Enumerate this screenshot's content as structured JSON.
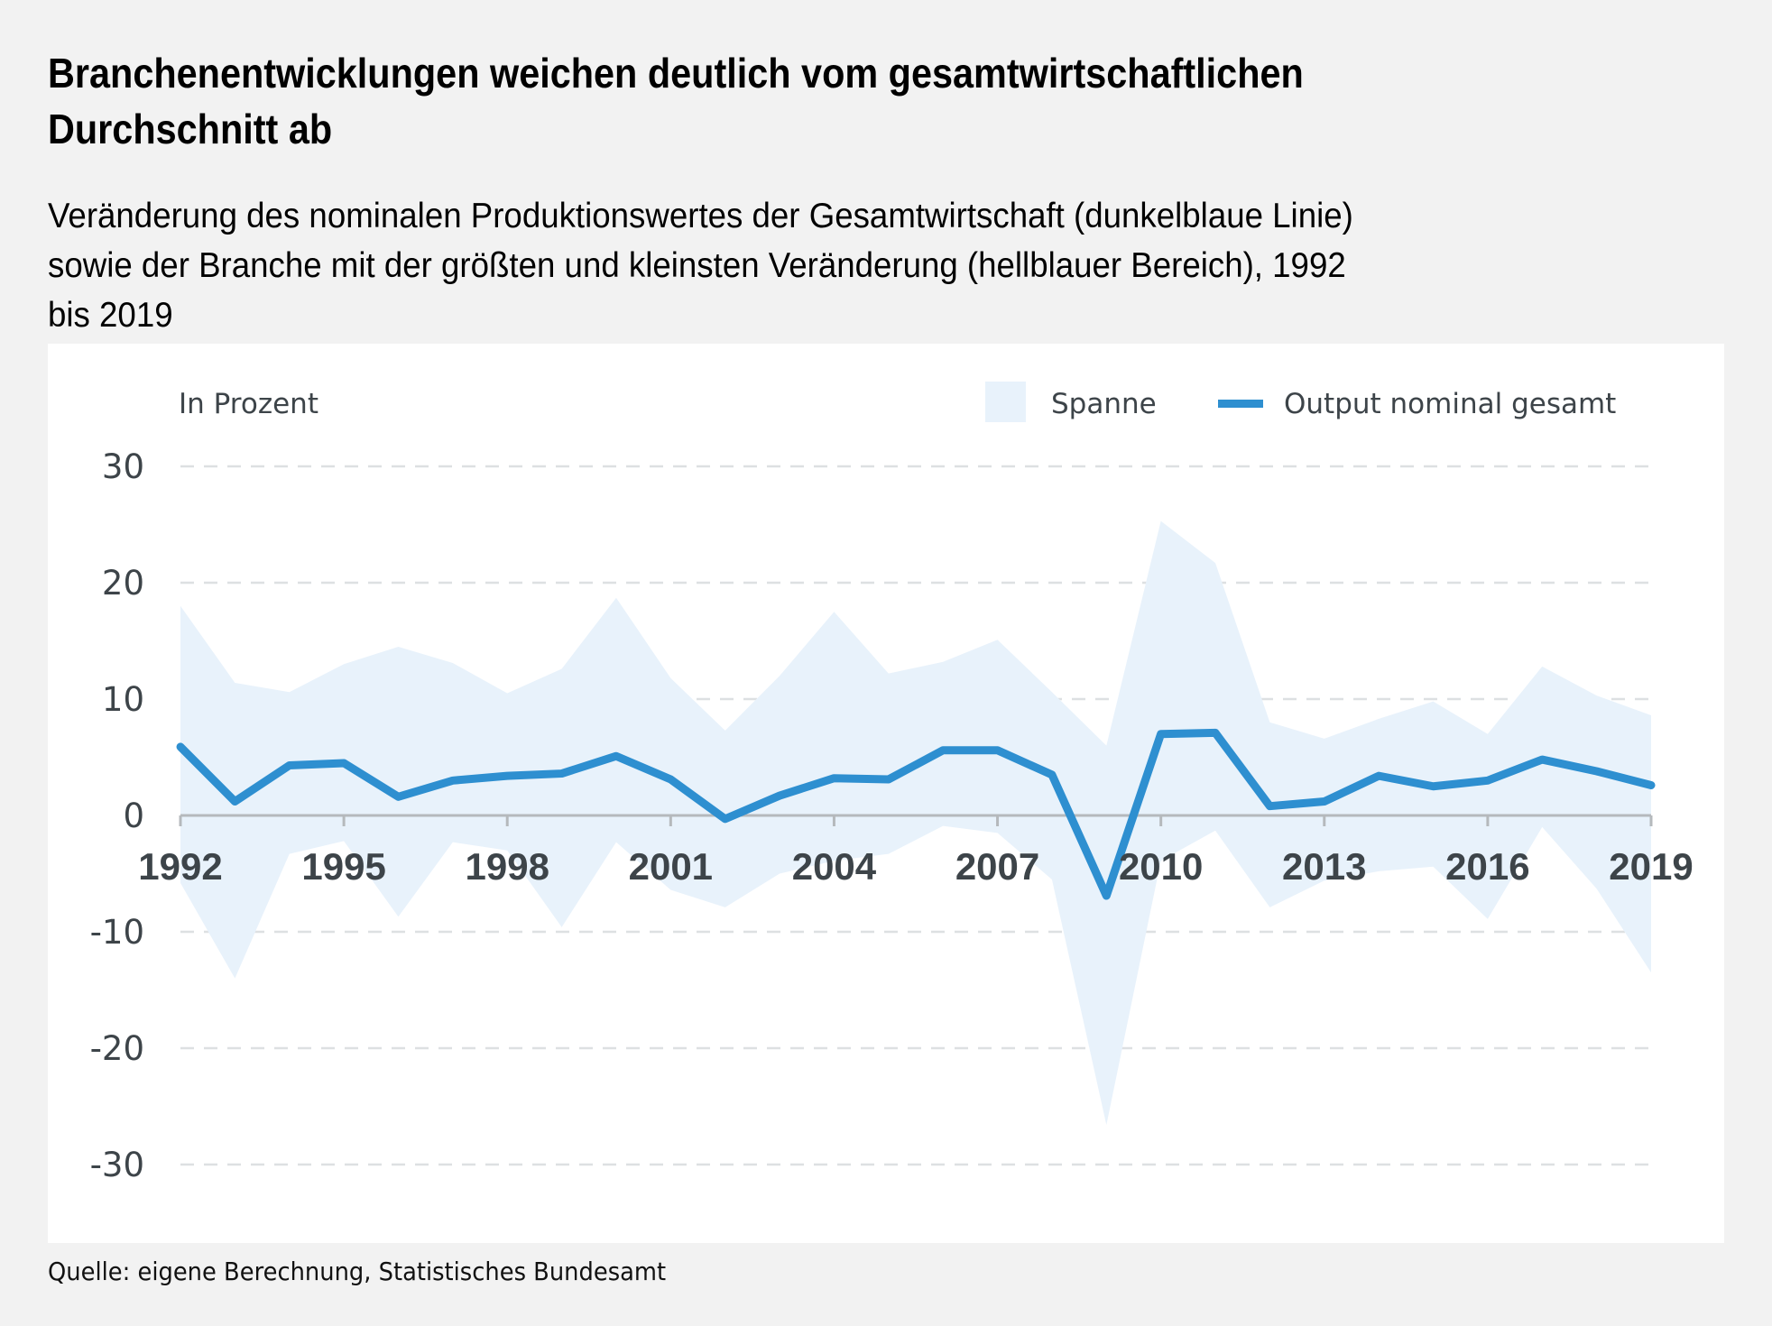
{
  "header": {
    "title": "Branchenentwicklungen weichen deutlich vom gesamtwirtschaftlichen Durchschnitt ab",
    "title_lines": [
      "Branchenentwicklungen weichen deutlich vom gesamtwirtschaftlichen",
      "Durchschnitt ab"
    ],
    "subtitle_lines": [
      "Veränderung des nominalen Produktionswertes der Gesamtwirtschaft (dunkelblaue Linie)",
      "sowie der Branche mit der größten und kleinsten Veränderung (hellblauer Bereich), 1992",
      "bis 2019"
    ]
  },
  "footer": {
    "source": "Quelle: eigene Berechnung, Statistisches Bundesamt"
  },
  "colors": {
    "line": "#2e8fd0",
    "band": "#e8f2fb",
    "text": "#3d4449",
    "grid": "#dde0e2",
    "axis": "#b5b9bc",
    "background": "#f2f2f2",
    "panel": "#ffffff"
  },
  "chart_data": {
    "type": "line",
    "title": "Branchenentwicklungen weichen deutlich vom gesamtwirtschaftlichen Durchschnitt ab",
    "ylabel": "In Prozent",
    "xlabel": "",
    "ylim": [
      -30,
      30
    ],
    "yticks": [
      30,
      20,
      10,
      0,
      -10,
      -20,
      -30
    ],
    "ytick_labels": [
      "30",
      "20",
      "10",
      "0",
      "-10",
      "-20",
      "-30"
    ],
    "xticks": [
      1992,
      1995,
      1998,
      2001,
      2004,
      2007,
      2010,
      2013,
      2016,
      2019
    ],
    "xtick_labels": [
      "1992",
      "1995",
      "1998",
      "2001",
      "2004",
      "2007",
      "2010",
      "2013",
      "2016",
      "2019"
    ],
    "xlim": [
      1992,
      2019
    ],
    "grid": true,
    "legend_position": "top-right",
    "legend": [
      {
        "label": "Spanne",
        "kind": "area"
      },
      {
        "label": "Output nominal gesamt",
        "kind": "line"
      }
    ],
    "x": [
      1992,
      1993,
      1994,
      1995,
      1996,
      1997,
      1998,
      1999,
      2000,
      2001,
      2002,
      2003,
      2004,
      2005,
      2006,
      2007,
      2008,
      2009,
      2010,
      2011,
      2012,
      2013,
      2014,
      2015,
      2016,
      2017,
      2018,
      2019
    ],
    "series": [
      {
        "name": "Output nominal gesamt",
        "type": "line",
        "values": [
          5.9,
          1.2,
          4.3,
          4.5,
          1.6,
          3.0,
          3.4,
          3.6,
          5.1,
          3.1,
          -0.3,
          1.7,
          3.2,
          3.1,
          5.6,
          5.6,
          3.5,
          -6.9,
          7.0,
          7.1,
          0.8,
          1.2,
          3.4,
          2.5,
          3.0,
          4.8,
          3.8,
          2.6
        ]
      },
      {
        "name": "Spanne",
        "type": "area-range",
        "upper": [
          18.0,
          11.4,
          10.6,
          13.0,
          14.5,
          13.1,
          10.5,
          12.6,
          18.7,
          11.8,
          7.3,
          12.0,
          17.5,
          12.2,
          13.2,
          15.1,
          10.6,
          6.0,
          25.3,
          21.7,
          8.0,
          6.6,
          8.3,
          9.8,
          7.0,
          12.8,
          10.3,
          8.6
        ],
        "lower": [
          -5.8,
          -14.0,
          -3.3,
          -2.2,
          -8.7,
          -2.3,
          -3.0,
          -9.6,
          -2.3,
          -6.4,
          -7.9,
          -5.0,
          -3.9,
          -3.3,
          -0.9,
          -1.5,
          -5.5,
          -26.6,
          -3.9,
          -1.3,
          -7.9,
          -5.6,
          -4.8,
          -4.4,
          -8.9,
          -1.0,
          -6.3,
          -13.5
        ]
      }
    ]
  }
}
